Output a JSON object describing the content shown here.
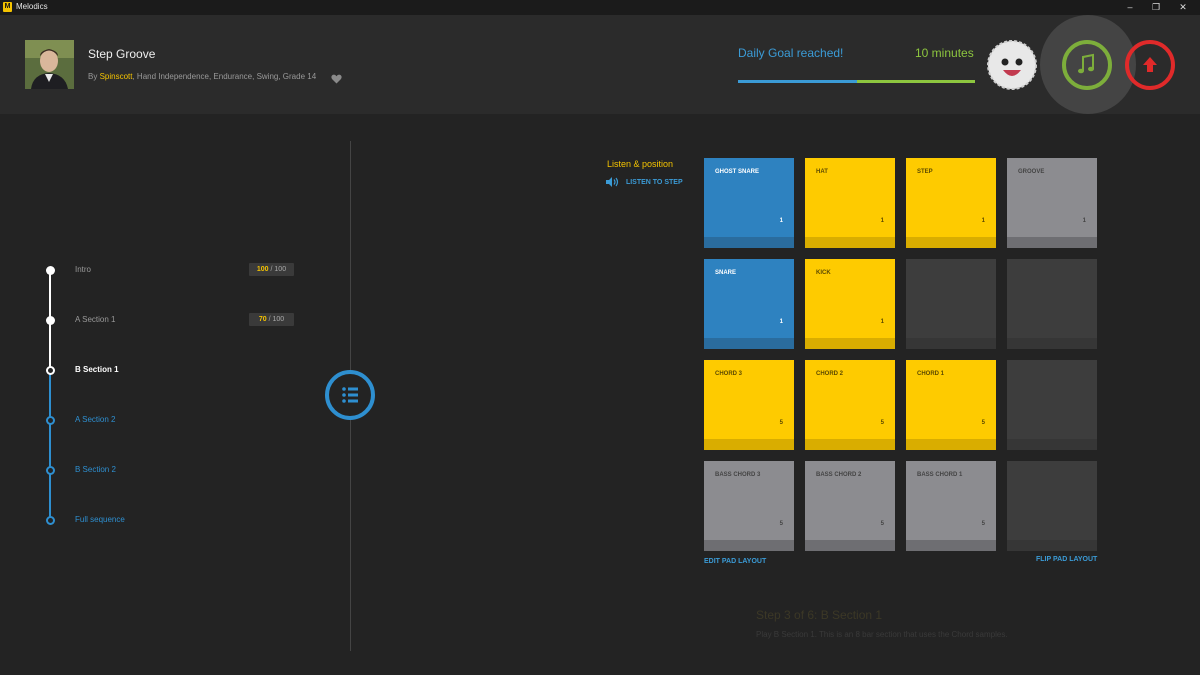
{
  "window": {
    "title": "Melodics",
    "logo_letter": "M"
  },
  "header": {
    "lesson_title": "Step Groove",
    "by_prefix": "By ",
    "author": "Spinscott",
    "tags": ", Hand Independence, Endurance, Swing, Grade 14",
    "goal_text": "Daily Goal reached!",
    "goal_minutes": "10 minutes",
    "goal_progress": 0.5
  },
  "sections": [
    {
      "label": "Intro",
      "score": "100",
      "total": " / 100",
      "state": "done"
    },
    {
      "label": "A Section 1",
      "score": "70",
      "total": " / 100",
      "state": "done"
    },
    {
      "label": "B Section 1",
      "state": "current"
    },
    {
      "label": "A Section 2",
      "state": "todo"
    },
    {
      "label": "B Section 2",
      "state": "todo"
    },
    {
      "label": "Full sequence",
      "state": "todo"
    }
  ],
  "listen": {
    "title": "Listen & position",
    "button": "LISTEN TO STEP"
  },
  "pads": [
    {
      "name": "GHOST SNARE",
      "value": "1",
      "color": "blue"
    },
    {
      "name": "HAT",
      "value": "1",
      "color": "yellow"
    },
    {
      "name": "STEP",
      "value": "1",
      "color": "yellow"
    },
    {
      "name": "GROOVE",
      "value": "1",
      "color": "grey"
    },
    {
      "name": "SNARE",
      "value": "1",
      "color": "blue"
    },
    {
      "name": "KICK",
      "value": "1",
      "color": "yellow"
    },
    {
      "name": "",
      "value": "",
      "color": "dark"
    },
    {
      "name": "",
      "value": "",
      "color": "dark"
    },
    {
      "name": "CHORD 3",
      "value": "5",
      "color": "yellow"
    },
    {
      "name": "CHORD 2",
      "value": "5",
      "color": "yellow"
    },
    {
      "name": "CHORD 1",
      "value": "5",
      "color": "yellow"
    },
    {
      "name": "",
      "value": "",
      "color": "dark"
    },
    {
      "name": "BASS CHORD 3",
      "value": "5",
      "color": "grey"
    },
    {
      "name": "BASS CHORD 2",
      "value": "5",
      "color": "grey"
    },
    {
      "name": "BASS CHORD 1",
      "value": "5",
      "color": "grey"
    },
    {
      "name": "",
      "value": "",
      "color": "dark"
    }
  ],
  "pad_links": {
    "edit": "EDIT PAD LAYOUT",
    "flip": "FLIP PAD LAYOUT"
  },
  "step": {
    "title": "Step 3 of 6: B Section 1",
    "description": "Play B Section 1. This is an 8 bar section that uses the Chord samples."
  },
  "colors": {
    "accent_yellow": "#fecb00",
    "accent_blue": "#2e82c0",
    "goal_green": "#8dc63f",
    "record_red": "#e02a2a"
  }
}
